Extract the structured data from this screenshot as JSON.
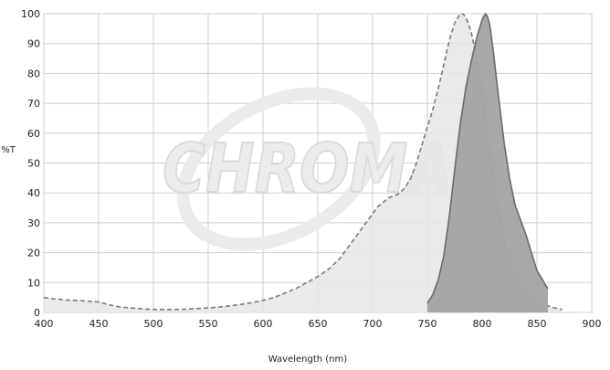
{
  "watermark": {
    "text": "CHROMA"
  },
  "chart_data": {
    "type": "area",
    "xlabel": "Wavelength (nm)",
    "ylabel": "%T",
    "xlim": [
      400,
      900
    ],
    "ylim": [
      0,
      100
    ],
    "xticks": [
      400,
      450,
      500,
      550,
      600,
      650,
      700,
      750,
      800,
      850,
      900
    ],
    "yticks": [
      0,
      10,
      20,
      30,
      40,
      50,
      60,
      70,
      80,
      90,
      100
    ],
    "grid": true,
    "series": [
      {
        "style": "dashed-light-fill",
        "fill": "#e6e6e6",
        "line": "#7a7a7a",
        "x": [
          400,
          410,
          420,
          430,
          440,
          450,
          460,
          470,
          480,
          490,
          500,
          510,
          520,
          530,
          540,
          550,
          560,
          570,
          580,
          590,
          600,
          610,
          620,
          630,
          640,
          650,
          660,
          670,
          680,
          690,
          700,
          705,
          710,
          715,
          720,
          725,
          730,
          735,
          740,
          745,
          750,
          755,
          760,
          765,
          770,
          775,
          780,
          782,
          785,
          790,
          795,
          800,
          805,
          810,
          815,
          820,
          825,
          830,
          835,
          840,
          845,
          850,
          855,
          860,
          865,
          870,
          873
        ],
        "values": [
          5,
          4.5,
          4.2,
          4,
          3.8,
          3.5,
          2.5,
          1.8,
          1.5,
          1.2,
          1,
          1,
          1,
          1.1,
          1.3,
          1.5,
          1.8,
          2.2,
          2.7,
          3.3,
          4,
          5,
          6.5,
          8,
          10,
          12,
          14.5,
          18,
          23,
          28,
          33,
          35.5,
          37,
          38.5,
          39,
          40,
          42,
          45,
          50,
          56,
          62,
          68,
          75,
          83,
          91,
          97,
          100,
          100,
          99,
          94,
          85,
          72,
          58,
          45,
          33,
          24,
          17,
          12,
          8.5,
          6,
          4.5,
          3.5,
          2.8,
          2.2,
          1.6,
          1.2,
          1
        ]
      },
      {
        "style": "solid-dark-fill",
        "fill": "#a3a3a3",
        "line": "#6a6a6a",
        "x": [
          750,
          755,
          760,
          765,
          770,
          775,
          780,
          785,
          790,
          795,
          800,
          803,
          805,
          807,
          810,
          815,
          820,
          825,
          830,
          835,
          840,
          845,
          850,
          855,
          858,
          860
        ],
        "values": [
          3,
          6,
          11,
          19,
          32,
          48,
          63,
          75,
          84,
          92,
          98,
          100,
          99,
          96,
          88,
          72,
          57,
          45,
          36,
          31,
          26,
          20,
          14,
          11,
          9,
          8
        ]
      }
    ]
  }
}
